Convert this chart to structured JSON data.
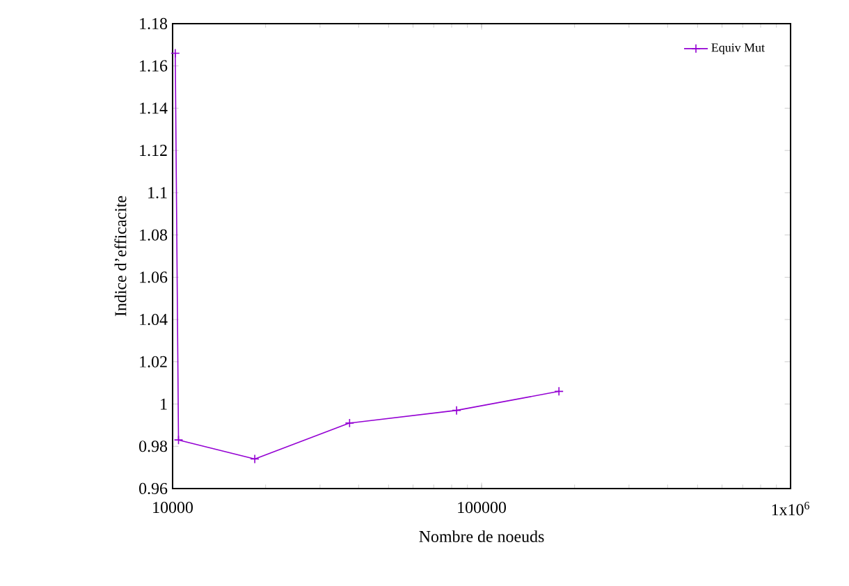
{
  "chart_data": {
    "type": "line",
    "xlabel": "Nombre de noeuds",
    "ylabel": "Indice d’efficacite",
    "log": "x",
    "x": [
      10200,
      10450,
      18450,
      37400,
      83000,
      178000
    ],
    "series": [
      {
        "name": "Equiv Mut",
        "color": "#9400d3",
        "values": [
          1.166,
          0.983,
          0.974,
          0.991,
          0.997,
          1.006
        ]
      }
    ],
    "xlim": [
      10000,
      1000000
    ],
    "xticks": [
      10000,
      100000,
      {
        "value": 1000000,
        "label": "1x10$^{6}$"
      }
    ],
    "ylim": [
      0.96,
      1.18
    ],
    "yticks": [
      0.96,
      0.98,
      1,
      1.02,
      1.04,
      1.06,
      1.08,
      1.1,
      1.12,
      1.14,
      1.16,
      1.18
    ],
    "grid": false,
    "legend": "top right",
    "marker": "cross",
    "line_style": "solid"
  }
}
